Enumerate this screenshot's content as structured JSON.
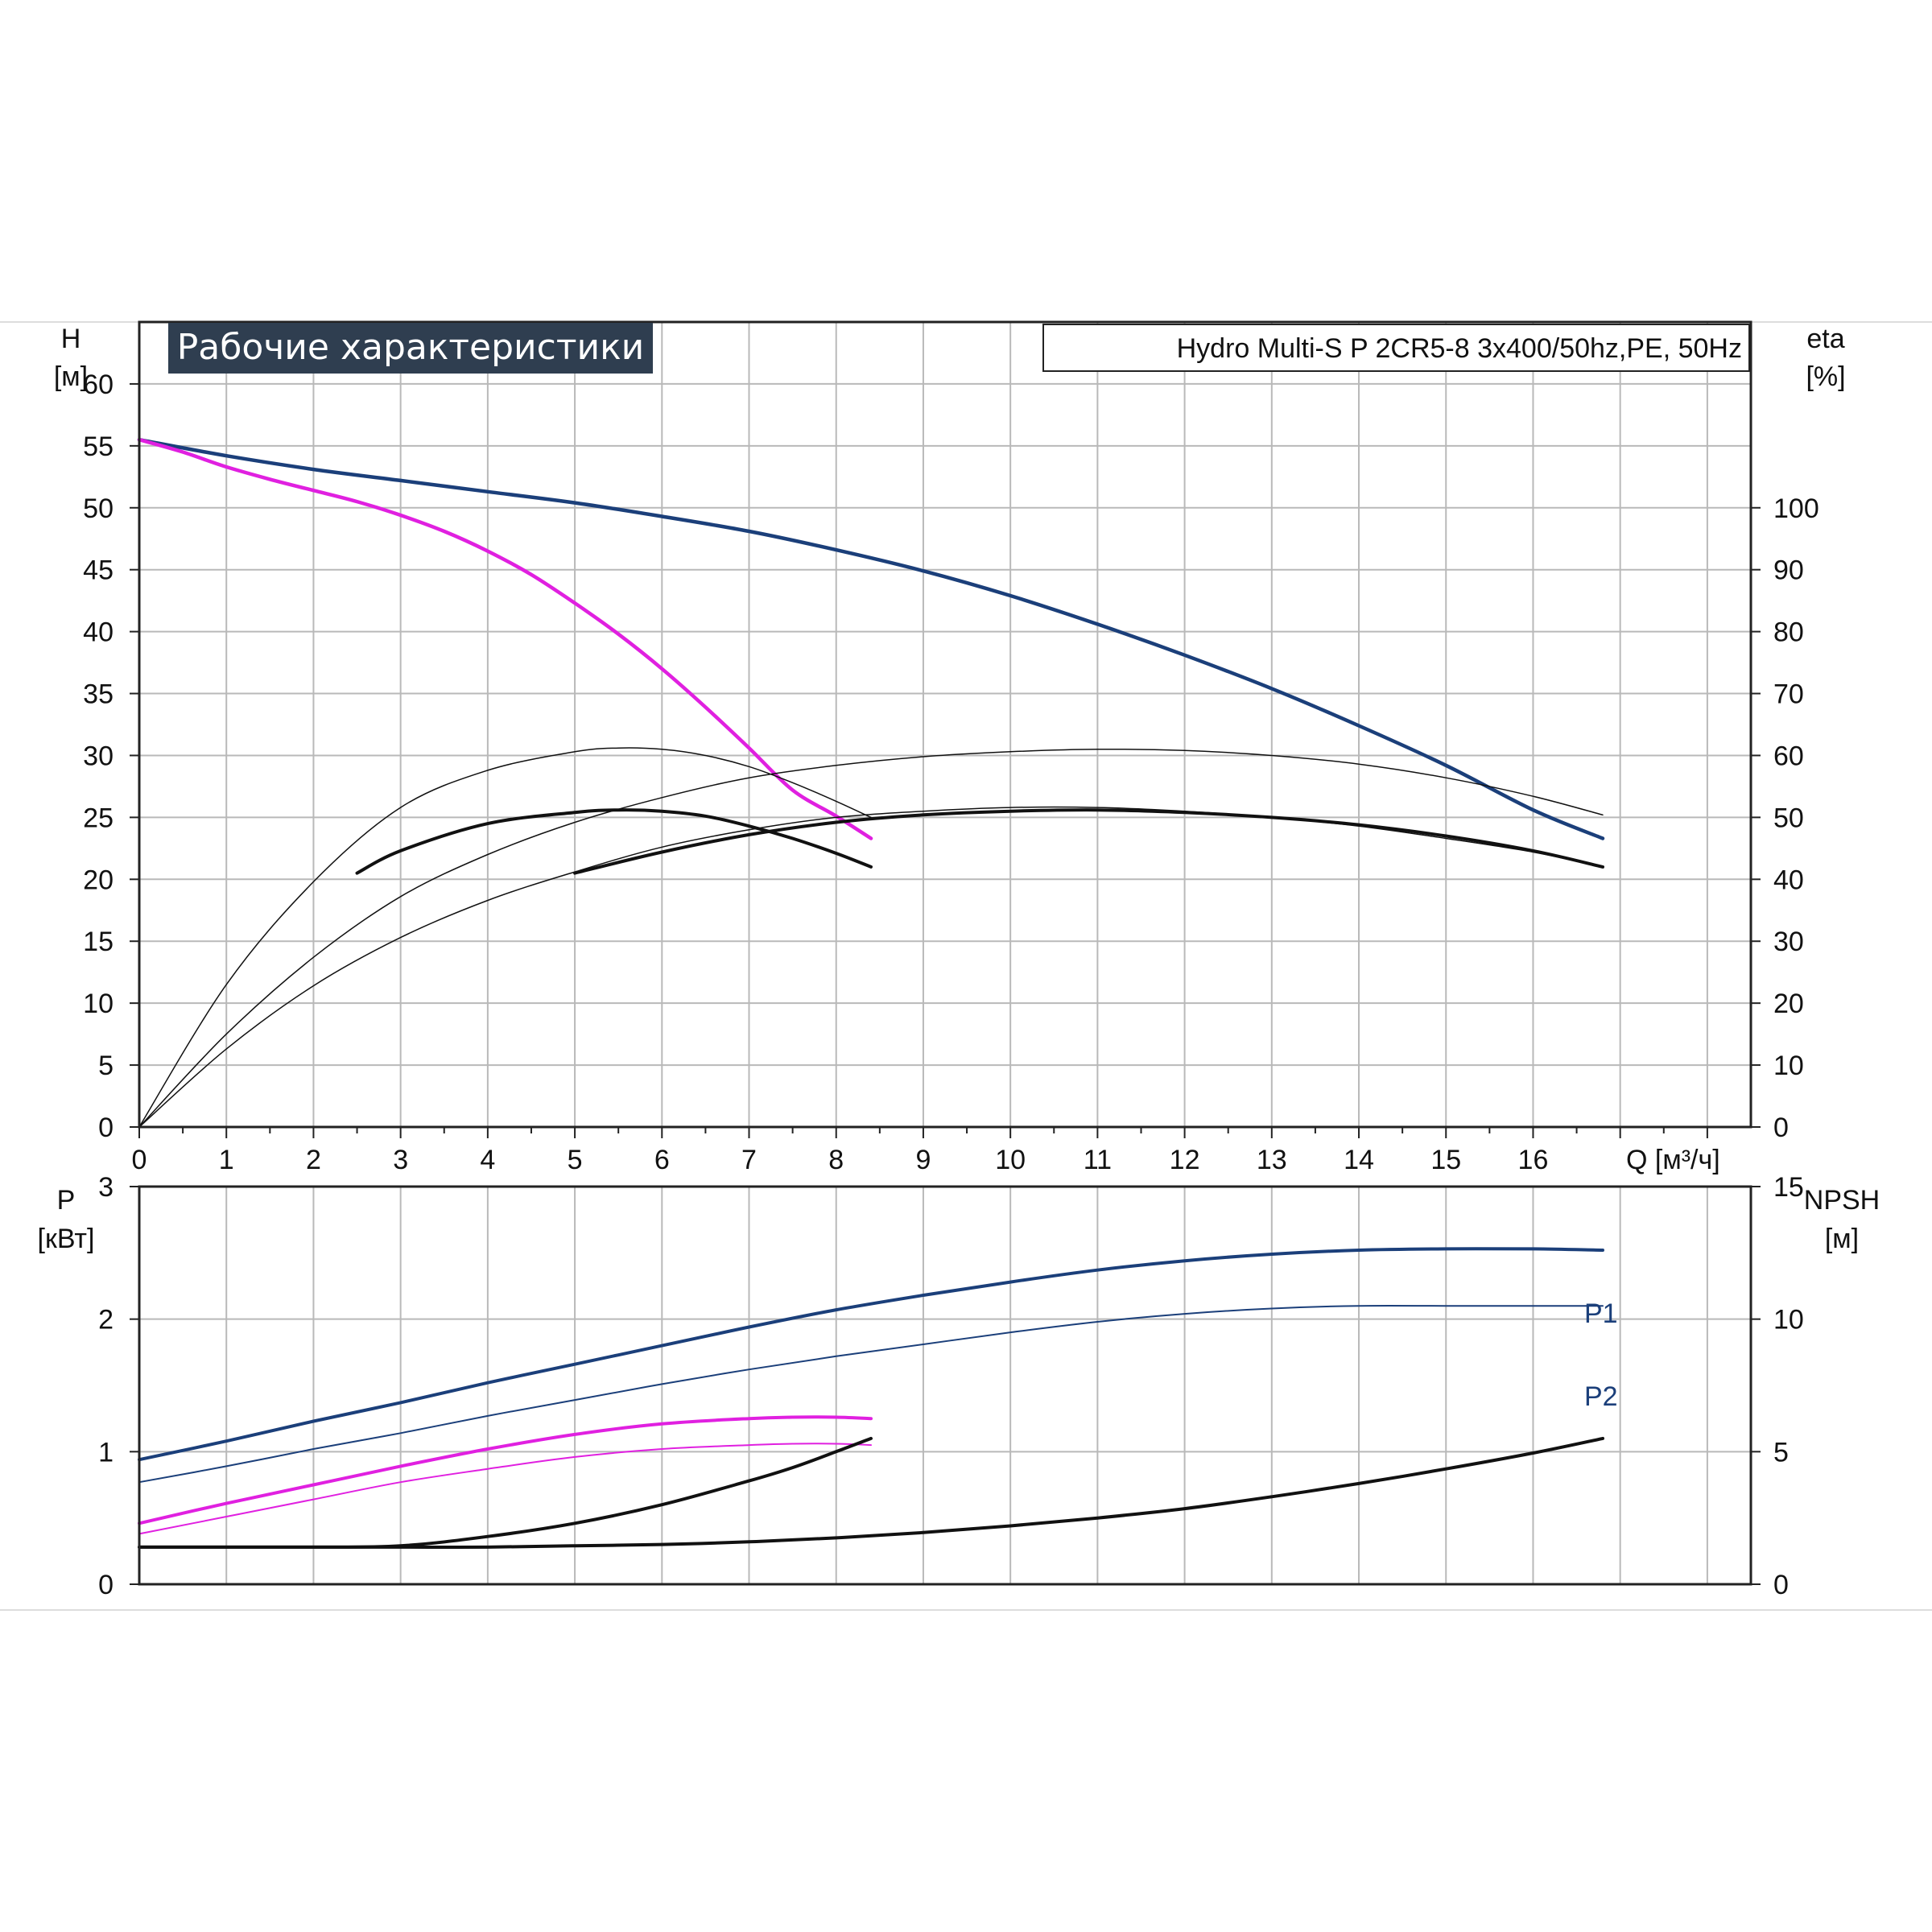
{
  "chart_data": [
    {
      "type": "line",
      "title": "Рабочие характеристики",
      "subtitle": "Hydro Multi-S P 2CR5-8 3x400/50hz,PE, 50Hz",
      "ylabel_left": "H",
      "ylabel_left_unit": "[м]",
      "ylabel_right": "eta",
      "ylabel_right_unit": "[%]",
      "xlabel": "Q [м³/ч]",
      "x_ticks": [
        "0",
        "1",
        "2",
        "3",
        "4",
        "5",
        "6",
        "7",
        "8",
        "9",
        "10",
        "11",
        "12",
        "13",
        "14",
        "15",
        "16"
      ],
      "y_left_ticks": [
        "0",
        "5",
        "10",
        "15",
        "20",
        "25",
        "30",
        "35",
        "40",
        "45",
        "50",
        "55",
        "60"
      ],
      "y_right_ticks": [
        "0",
        "10",
        "20",
        "30",
        "40",
        "50",
        "60",
        "70",
        "80",
        "90",
        "100"
      ],
      "xlim": [
        0,
        18.5
      ],
      "ylim_left": [
        0,
        65
      ],
      "ylim_right": [
        0,
        130
      ],
      "grid": true,
      "series": [
        {
          "color": "#1b3f7a",
          "width": 4.5,
          "axis": "left",
          "x": [
            0,
            1,
            2,
            3,
            4,
            5,
            6,
            7,
            8,
            9,
            10,
            11,
            12,
            13,
            14,
            15,
            16,
            16.8
          ],
          "y": [
            55.5,
            54.2,
            53.1,
            52.2,
            51.3,
            50.4,
            49.3,
            48.1,
            46.6,
            44.9,
            42.9,
            40.6,
            38.1,
            35.4,
            32.4,
            29.2,
            25.6,
            23.3
          ]
        },
        {
          "color": "#e020e0",
          "width": 4.5,
          "axis": "left",
          "x": [
            0,
            0.5,
            1,
            1.5,
            2,
            2.5,
            3,
            3.5,
            4,
            4.5,
            5,
            5.5,
            6,
            6.5,
            7,
            7.5,
            8,
            8.4
          ],
          "y": [
            55.5,
            54.5,
            53.3,
            52.3,
            51.4,
            50.5,
            49.4,
            48.1,
            46.5,
            44.6,
            42.3,
            39.8,
            37.0,
            33.9,
            30.6,
            27.2,
            25.1,
            23.3
          ]
        },
        {
          "color": "#111111",
          "width": 1.5,
          "axis": "left",
          "x": [
            0,
            1,
            2,
            3,
            4,
            5,
            5.5,
            6,
            6.5,
            7,
            7.5,
            8,
            8.4
          ],
          "y": [
            0,
            11.5,
            19.8,
            25.8,
            28.8,
            30.3,
            30.6,
            30.5,
            30.0,
            29.1,
            27.8,
            26.3,
            25.0
          ]
        },
        {
          "color": "#111111",
          "width": 4,
          "axis": "left",
          "x": [
            2.5,
            3,
            4,
            5,
            5.5,
            6,
            6.5,
            7,
            7.5,
            8,
            8.4
          ],
          "y": [
            20.5,
            22.3,
            24.5,
            25.4,
            25.6,
            25.5,
            25.1,
            24.3,
            23.3,
            22.1,
            21.0
          ]
        },
        {
          "color": "#111111",
          "width": 1.5,
          "axis": "left",
          "x": [
            0,
            1,
            2,
            3,
            4,
            5,
            6,
            7,
            8,
            9,
            10,
            11,
            12,
            13,
            14,
            15,
            16,
            16.8
          ],
          "y": [
            0,
            7.5,
            13.7,
            18.6,
            22.0,
            24.6,
            26.6,
            28.2,
            29.2,
            29.9,
            30.3,
            30.5,
            30.4,
            30.0,
            29.3,
            28.2,
            26.7,
            25.2
          ]
        },
        {
          "color": "#111111",
          "width": 4,
          "axis": "left",
          "x": [
            5,
            6,
            7,
            8,
            9,
            10,
            11,
            12,
            13,
            14,
            15,
            16,
            16.8
          ],
          "y": [
            20.5,
            22.2,
            23.6,
            24.6,
            25.2,
            25.5,
            25.6,
            25.4,
            25.0,
            24.4,
            23.5,
            22.3,
            21.0
          ]
        },
        {
          "color": "#111111",
          "width": 1.5,
          "axis": "left",
          "x": [
            0,
            1,
            2,
            3,
            4,
            5,
            6,
            7,
            8,
            9,
            10,
            11,
            12,
            13,
            14,
            15,
            16,
            16.8
          ],
          "y": [
            0,
            6.3,
            11.4,
            15.3,
            18.3,
            20.6,
            22.6,
            24.0,
            25.0,
            25.5,
            25.8,
            25.8,
            25.5,
            25.0,
            24.3,
            23.3,
            22.2,
            21.0
          ]
        }
      ]
    },
    {
      "type": "line",
      "ylabel_left": "P",
      "ylabel_left_unit": "[кВт]",
      "ylabel_right": "NPSH",
      "ylabel_right_unit": "[м]",
      "y_left_ticks": [
        "0",
        "1",
        "2",
        "3"
      ],
      "y_right_ticks": [
        "0",
        "5",
        "10",
        "15"
      ],
      "xlim": [
        0,
        18.5
      ],
      "ylim_left": [
        0,
        3.0
      ],
      "ylim_right": [
        0,
        15
      ],
      "grid": true,
      "series": [
        {
          "name": "P1",
          "color": "#1b3f7a",
          "width": 4,
          "axis": "left",
          "x": [
            0,
            1,
            2,
            3,
            4,
            5,
            6,
            7,
            8,
            9,
            10,
            11,
            12,
            13,
            14,
            15,
            16,
            16.8
          ],
          "y": [
            0.94,
            1.08,
            1.23,
            1.37,
            1.52,
            1.66,
            1.8,
            1.94,
            2.07,
            2.18,
            2.28,
            2.37,
            2.44,
            2.49,
            2.52,
            2.53,
            2.53,
            2.52
          ]
        },
        {
          "name": "P2",
          "color": "#1b3f7a",
          "width": 2,
          "axis": "left",
          "x": [
            0,
            1,
            2,
            3,
            4,
            5,
            6,
            7,
            8,
            9,
            10,
            11,
            12,
            13,
            14,
            15,
            16,
            16.8
          ],
          "y": [
            0.77,
            0.89,
            1.02,
            1.14,
            1.27,
            1.39,
            1.51,
            1.62,
            1.72,
            1.81,
            1.9,
            1.98,
            2.04,
            2.08,
            2.1,
            2.1,
            2.1,
            2.1
          ]
        },
        {
          "color": "#e020e0",
          "width": 4,
          "axis": "left",
          "x": [
            0,
            1,
            2,
            3,
            4,
            5,
            6,
            7,
            7.5,
            8,
            8.4
          ],
          "y": [
            0.46,
            0.61,
            0.75,
            0.89,
            1.02,
            1.13,
            1.21,
            1.25,
            1.26,
            1.26,
            1.25
          ]
        },
        {
          "color": "#e020e0",
          "width": 2,
          "axis": "left",
          "x": [
            0,
            1,
            2,
            3,
            4,
            5,
            6,
            7,
            7.5,
            8,
            8.4
          ],
          "y": [
            0.38,
            0.51,
            0.64,
            0.77,
            0.87,
            0.96,
            1.02,
            1.05,
            1.06,
            1.06,
            1.05
          ]
        },
        {
          "color": "#111111",
          "width": 4,
          "axis": "right",
          "x": [
            0,
            1,
            2,
            3,
            4,
            5,
            6,
            7,
            7.5,
            8,
            8.4
          ],
          "y": [
            1.4,
            1.4,
            1.4,
            1.45,
            1.8,
            2.3,
            3.0,
            3.9,
            4.4,
            5.0,
            5.5
          ]
        },
        {
          "color": "#111111",
          "width": 4,
          "axis": "right",
          "x": [
            0,
            1,
            2,
            3,
            4,
            5,
            6,
            7,
            8,
            9,
            10,
            11,
            12,
            13,
            14,
            15,
            16,
            16.8
          ],
          "y": [
            1.4,
            1.4,
            1.4,
            1.4,
            1.4,
            1.45,
            1.5,
            1.6,
            1.75,
            1.95,
            2.2,
            2.5,
            2.85,
            3.3,
            3.8,
            4.35,
            4.95,
            5.5
          ]
        }
      ]
    }
  ]
}
